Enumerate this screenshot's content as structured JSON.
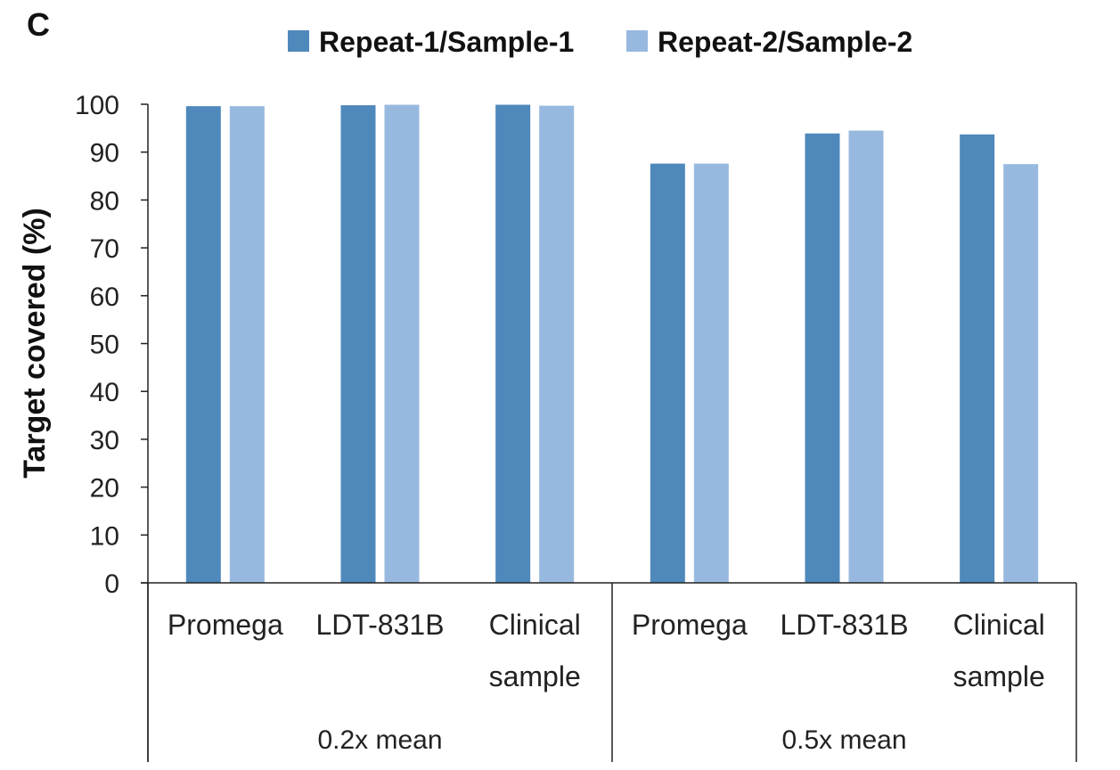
{
  "panel_label": "C",
  "chart_data": {
    "type": "bar",
    "title": "",
    "ylabel": "Target covered (%)",
    "xlabel": "",
    "ylim": [
      0,
      100
    ],
    "yticks": [
      0,
      10,
      20,
      30,
      40,
      50,
      60,
      70,
      80,
      90,
      100
    ],
    "grid": false,
    "legend_position": "top",
    "groups": [
      {
        "label": "0.2x mean",
        "categories": [
          "Promega",
          "LDT-831B",
          "Clinical sample"
        ]
      },
      {
        "label": "0.5x mean",
        "categories": [
          "Promega",
          "LDT-831B",
          "Clinical sample"
        ]
      }
    ],
    "categories": [
      {
        "lines": [
          "Promega"
        ]
      },
      {
        "lines": [
          "LDT-831B"
        ]
      },
      {
        "lines": [
          "Clinical",
          "sample"
        ]
      },
      {
        "lines": [
          "Promega"
        ]
      },
      {
        "lines": [
          "LDT-831B"
        ]
      },
      {
        "lines": [
          "Clinical",
          "sample"
        ]
      }
    ],
    "series": [
      {
        "name": "Repeat-1/Sample-1",
        "color": "#4f88bb",
        "values": [
          99.6,
          99.8,
          99.9,
          87.6,
          93.9,
          93.7
        ]
      },
      {
        "name": "Repeat-2/Sample-2",
        "color": "#98b9df",
        "values": [
          99.6,
          99.9,
          99.7,
          87.6,
          94.5,
          87.5
        ]
      }
    ]
  }
}
